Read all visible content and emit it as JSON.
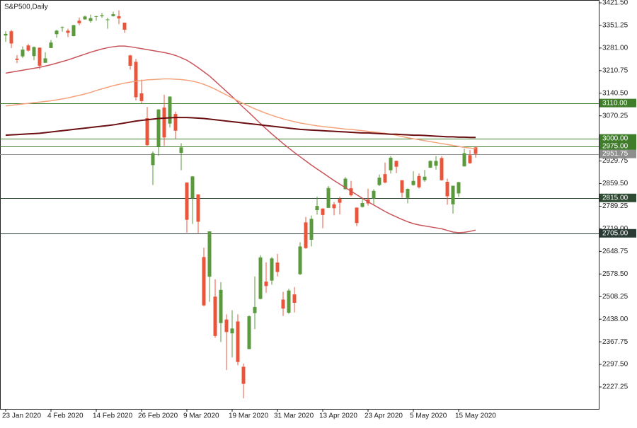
{
  "chart_data": {
    "type": "candlestick",
    "title": "S&P500,Daily",
    "categories": [
      "23 Jan 2020",
      null,
      null,
      null,
      null,
      null,
      null,
      null,
      "4 Feb 2020",
      null,
      null,
      null,
      null,
      null,
      null,
      null,
      "14 Feb 2020",
      null,
      null,
      null,
      null,
      null,
      null,
      null,
      "26 Feb 2020",
      null,
      null,
      null,
      null,
      null,
      null,
      null,
      "9 Mar 2020",
      null,
      null,
      null,
      null,
      null,
      null,
      null,
      "19 Mar 2020",
      null,
      null,
      null,
      null,
      null,
      null,
      null,
      "31 Mar 2020",
      null,
      null,
      null,
      null,
      null,
      null,
      null,
      "13 Apr 2020",
      null,
      null,
      null,
      null,
      null,
      null,
      null,
      "23 Apr 2020",
      null,
      null,
      null,
      null,
      null,
      null,
      null,
      "5 May 2020",
      null,
      null,
      null,
      null,
      null,
      null,
      null,
      "15 May 2020",
      null,
      null,
      null
    ],
    "open": [
      3320,
      3333,
      3248,
      3255,
      3289,
      3256,
      3282,
      3235,
      3281,
      3324,
      3344,
      3335,
      3318,
      3366,
      3370,
      3365,
      3378,
      3380,
      3369,
      3380,
      3380,
      3360,
      3258,
      3238,
      3140,
      3063,
      2917,
      2975,
      3096,
      3046,
      3076,
      2955,
      2863,
      2814,
      2826,
      2631,
      2570,
      2508,
      2426,
      2437,
      2394,
      2431,
      2290,
      2345,
      2457,
      2501,
      2555,
      2558,
      2614,
      2499,
      2458,
      2515,
      2578,
      2739,
      2685,
      2777,
      2782,
      2784,
      2795,
      2812,
      2842,
      2845,
      2785,
      2787,
      2810,
      2813,
      2855,
      2889,
      2901,
      2930,
      2870,
      2815,
      2855,
      2883,
      2870,
      2909,
      2915,
      2939,
      2865,
      2795,
      2829,
      2913,
      2948,
      2972
    ],
    "high": [
      3333,
      3338,
      3259,
      3286,
      3294,
      3286,
      3283,
      3268,
      3306,
      3338,
      3348,
      3341,
      3353,
      3376,
      3382,
      3385,
      3381,
      3390,
      3375,
      3394,
      3398,
      3360,
      3260,
      3247,
      3183,
      3098,
      2960,
      3091,
      3136,
      3131,
      3083,
      2985,
      2863,
      2883,
      2826,
      2660,
      2711,
      2562,
      2553,
      2453,
      2466,
      2453,
      2300,
      2450,
      2571,
      2637,
      2615,
      2631,
      2641,
      2523,
      2533,
      2538,
      2677,
      2756,
      2760,
      2819,
      2783,
      2852,
      2802,
      2819,
      2880,
      2868,
      2785,
      2816,
      2844,
      2842,
      2888,
      2925,
      2945,
      2931,
      2870,
      2845,
      2898,
      2891,
      2902,
      2932,
      2945,
      2945,
      2875,
      2853,
      2865,
      2968,
      2964,
      2976
    ],
    "low": [
      3300,
      3281,
      3234,
      3250,
      3270,
      3243,
      3215,
      3235,
      3281,
      3313,
      3332,
      3315,
      3317,
      3352,
      3369,
      3360,
      3366,
      3375,
      3341,
      3379,
      3355,
      3328,
      3214,
      3118,
      3108,
      2977,
      2855,
      2946,
      2977,
      3034,
      2999,
      2901,
      2707,
      2734,
      2706,
      2478,
      2492,
      2380,
      2367,
      2280,
      2319,
      2295,
      2192,
      2345,
      2407,
      2500,
      2520,
      2545,
      2571,
      2448,
      2455,
      2459,
      2575,
      2657,
      2664,
      2763,
      2721,
      2784,
      2761,
      2764,
      2842,
      2820,
      2727,
      2785,
      2791,
      2795,
      2852,
      2860,
      2891,
      2892,
      2816,
      2798,
      2853,
      2844,
      2865,
      2908,
      2903,
      2869,
      2794,
      2766,
      2818,
      2913,
      2921,
      2940
    ],
    "close": [
      3325,
      3295,
      3244,
      3276,
      3273,
      3284,
      3226,
      3249,
      3298,
      3335,
      3346,
      3328,
      3352,
      3358,
      3379,
      3374,
      3380,
      3383,
      3370,
      3386,
      3373,
      3338,
      3226,
      3128,
      3116,
      2979,
      2954,
      3090,
      3003,
      3130,
      3024,
      2972,
      2747,
      2882,
      2741,
      2481,
      2711,
      2386,
      2529,
      2398,
      2409,
      2305,
      2237,
      2447,
      2476,
      2630,
      2541,
      2627,
      2585,
      2471,
      2527,
      2489,
      2664,
      2659,
      2750,
      2790,
      2762,
      2846,
      2783,
      2800,
      2875,
      2823,
      2737,
      2799,
      2798,
      2837,
      2878,
      2863,
      2940,
      2912,
      2831,
      2843,
      2868,
      2848,
      2881,
      2930,
      2930,
      2870,
      2820,
      2853,
      2864,
      2954,
      2923,
      2952
    ],
    "up_color": "#5b9a3c",
    "down_color": "#e8553a",
    "moving_averages": [
      {
        "color": "#c8545a",
        "values": [
          3203,
          3206,
          3209,
          3212,
          3215,
          3218,
          3221,
          3225,
          3229,
          3234,
          3239,
          3244,
          3250,
          3256,
          3262,
          3268,
          3273,
          3278,
          3282,
          3285,
          3287,
          3287,
          3285,
          3282,
          3279,
          3276,
          3273,
          3270,
          3267,
          3263,
          3258,
          3251,
          3243,
          3232,
          3220,
          3207,
          3194,
          3178,
          3162,
          3146,
          3130,
          3113,
          3096,
          3080,
          3063,
          3046,
          3030,
          3014,
          2999,
          2984,
          2970,
          2956,
          2943,
          2930,
          2917,
          2905,
          2893,
          2881,
          2869,
          2858,
          2847,
          2836,
          2825,
          2814,
          2803,
          2793,
          2783,
          2773,
          2764,
          2756,
          2748,
          2741,
          2735,
          2731,
          2728,
          2725,
          2722,
          2719,
          2714,
          2709,
          2707,
          2708,
          2711,
          2715
        ]
      },
      {
        "color": "#f4a27c",
        "values": [
          3101,
          3103,
          3105,
          3107,
          3109,
          3111,
          3113,
          3115,
          3117,
          3120,
          3123,
          3126,
          3130,
          3134,
          3138,
          3143,
          3149,
          3154,
          3159,
          3164,
          3168,
          3172,
          3175,
          3178,
          3180,
          3182,
          3183,
          3184,
          3185,
          3185,
          3184,
          3183,
          3181,
          3178,
          3174,
          3168,
          3161,
          3153,
          3144,
          3135,
          3126,
          3117,
          3108,
          3100,
          3092,
          3085,
          3078,
          3072,
          3066,
          3061,
          3056,
          3052,
          3048,
          3045,
          3042,
          3039,
          3037,
          3035,
          3033,
          3031,
          3029,
          3028,
          3026,
          3024,
          3022,
          3020,
          3018,
          3016,
          3013,
          3010,
          3006,
          3002,
          2999,
          2996,
          2993,
          2990,
          2987,
          2984,
          2981,
          2978,
          2975,
          2972,
          2970,
          2968
        ]
      },
      {
        "color": "#6b0f12",
        "values": [
          3010,
          3011,
          3012,
          3013,
          3014,
          3015,
          3016,
          3018,
          3020,
          3022,
          3024,
          3026,
          3028,
          3030,
          3032,
          3034,
          3036,
          3038,
          3040,
          3042,
          3045,
          3048,
          3051,
          3054,
          3056,
          3058,
          3060,
          3062,
          3063,
          3064,
          3065,
          3065,
          3065,
          3064,
          3063,
          3062,
          3060,
          3058,
          3056,
          3054,
          3052,
          3050,
          3048,
          3046,
          3044,
          3042,
          3040,
          3038,
          3036,
          3034,
          3032,
          3030,
          3028,
          3027,
          3026,
          3025,
          3024,
          3023,
          3022,
          3021,
          3020,
          3019,
          3018,
          3017,
          3017,
          3016,
          3015,
          3014,
          3013,
          3013,
          3012,
          3011,
          3010,
          3010,
          3009,
          3008,
          3007,
          3006,
          3005,
          3005,
          3004,
          3004,
          3003,
          3003
        ]
      }
    ],
    "levels": [
      {
        "value": 3110,
        "label": "3110.00",
        "color": "#3f7d2b"
      },
      {
        "value": 3000,
        "label": "3000.00",
        "color": "#3f7d2b"
      },
      {
        "value": 2975,
        "label": "2975.00",
        "color": "#3f7d2b"
      },
      {
        "value": 2951.75,
        "label": "2951.75",
        "color": "#8e8e8e"
      },
      {
        "value": 2815,
        "label": "2815.00",
        "color": "#2f4a33"
      },
      {
        "value": 2705,
        "label": "2705.00",
        "color": "#2a3b36"
      }
    ],
    "ylim": [
      2159.1,
      3430.3
    ],
    "yticks": [
      {
        "value": 3421.5,
        "label": "3421.50"
      },
      3351.25,
      {
        "value": 3281,
        "label": "3281.00"
      },
      3210.75,
      {
        "value": 3140.5,
        "label": "3140.50"
      },
      3070.25,
      2929.75,
      {
        "value": 2859.5,
        "label": "2859.50"
      },
      2789.25,
      {
        "value": 2719,
        "label": "2719.00"
      },
      2648.75,
      {
        "value": 2578.5,
        "label": "2578.50"
      },
      2508.25,
      {
        "value": 2438,
        "label": "2438.00"
      },
      2367.75,
      {
        "value": 2297.5,
        "label": "2297.50"
      },
      2227.25
    ]
  }
}
